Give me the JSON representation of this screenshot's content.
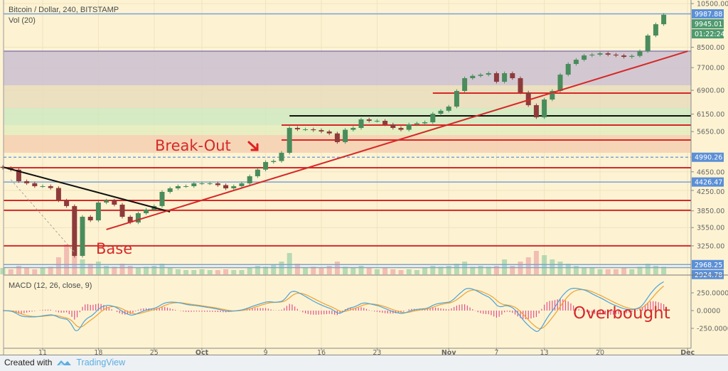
{
  "header": {
    "symbol_title": "Bitcoin / Dollar, 240, BITSTAMP",
    "volume_title": "Vol (20)"
  },
  "macd_title": "MACD (12, 26, close, 9)",
  "footer": {
    "created_with": "Created with",
    "brand": "TradingView"
  },
  "colors": {
    "background": "#fdf3d3",
    "up": "#4a8c5c",
    "down": "#8e3b3b",
    "level_red": "#d62828",
    "level_blue": "#7aa3d6",
    "trend_black": "#111111",
    "macd": "#4aa3d8",
    "signal": "#f0a030",
    "histogram": "#e0508a",
    "label_blue": "#5b8fd6",
    "label_green": "#4f9a6e"
  },
  "annotations": [
    {
      "text": "Break-Out",
      "date": "Sep 25",
      "price": 5240,
      "size": "large"
    },
    {
      "text": "Base",
      "date": "Sep 18",
      "price": 3160,
      "size": "large"
    },
    {
      "text": "Overbought",
      "date": "Nov 17",
      "macd": -200,
      "size": "large"
    }
  ],
  "chart_data": {
    "type": "candlestick",
    "title": "Bitcoin / Dollar, 240, BITSTAMP",
    "y_scale": "log",
    "ylim": [
      2850,
      10500
    ],
    "price_ticks": [
      10500,
      8500,
      7700,
      6900,
      6150,
      5650,
      4650,
      4250,
      3850,
      3550,
      3250
    ],
    "price_badges": [
      {
        "text": "9987.88",
        "value": 9987.88,
        "color": "blue"
      },
      {
        "text": "9945.01",
        "value": 9945.01,
        "color": "green"
      },
      {
        "text": "01:22:24",
        "value": 9350,
        "color": "green"
      },
      {
        "text": "4990.26",
        "value": 4990.26,
        "color": "blue"
      },
      {
        "text": "4426.47",
        "value": 4426.47,
        "color": "blue"
      },
      {
        "text": "2968.25",
        "value": 2968.25,
        "color": "blue"
      },
      {
        "text": "2924.78",
        "value": 2924.78,
        "color": "blue"
      }
    ],
    "x_ticks": [
      {
        "label": "11",
        "date": "Sep 11"
      },
      {
        "label": "18",
        "date": "Sep 18"
      },
      {
        "label": "25",
        "date": "Sep 25"
      },
      {
        "label": "Oct",
        "date": "Oct 01",
        "bold": true
      },
      {
        "label": "9",
        "date": "Oct 09"
      },
      {
        "label": "16",
        "date": "Oct 16"
      },
      {
        "label": "23",
        "date": "Oct 23"
      },
      {
        "label": "Nov",
        "date": "Nov 01",
        "bold": true
      },
      {
        "label": "7",
        "date": "Nov 07"
      },
      {
        "label": "13",
        "date": "Nov 13"
      },
      {
        "label": "20",
        "date": "Nov 20"
      },
      {
        "label": "Dec",
        "date": "Dec 01",
        "bold": true
      }
    ],
    "dates": [
      "Sep 06",
      "Sep 07",
      "Sep 08",
      "Sep 09",
      "Sep 10",
      "Sep 11",
      "Sep 12",
      "Sep 13",
      "Sep 14",
      "Sep 15",
      "Sep 16",
      "Sep 17",
      "Sep 18",
      "Sep 19",
      "Sep 20",
      "Sep 21",
      "Sep 22",
      "Sep 23",
      "Sep 24",
      "Sep 25",
      "Sep 26",
      "Sep 27",
      "Sep 28",
      "Sep 29",
      "Sep 30",
      "Oct 01",
      "Oct 02",
      "Oct 03",
      "Oct 04",
      "Oct 05",
      "Oct 06",
      "Oct 07",
      "Oct 08",
      "Oct 09",
      "Oct 10",
      "Oct 11",
      "Oct 12",
      "Oct 13",
      "Oct 14",
      "Oct 15",
      "Oct 16",
      "Oct 17",
      "Oct 18",
      "Oct 19",
      "Oct 20",
      "Oct 21",
      "Oct 22",
      "Oct 23",
      "Oct 24",
      "Oct 25",
      "Oct 26",
      "Oct 27",
      "Oct 28",
      "Oct 29",
      "Oct 30",
      "Oct 31",
      "Nov 01",
      "Nov 02",
      "Nov 03",
      "Nov 04",
      "Nov 05",
      "Nov 06",
      "Nov 07",
      "Nov 08",
      "Nov 09",
      "Nov 10",
      "Nov 11",
      "Nov 12",
      "Nov 13",
      "Nov 14",
      "Nov 15",
      "Nov 16",
      "Nov 17",
      "Nov 18",
      "Nov 19",
      "Nov 20",
      "Nov 21",
      "Nov 22",
      "Nov 23",
      "Nov 24",
      "Nov 25",
      "Nov 26",
      "Nov 27",
      "Nov 28"
    ],
    "close": [
      4740,
      4699,
      4444,
      4400,
      4338,
      4338,
      4300,
      4049,
      3940,
      3096,
      3741,
      3677,
      4008,
      4049,
      3967,
      3741,
      3639,
      3806,
      3872,
      3940,
      4220,
      4293,
      4338,
      4338,
      4398,
      4398,
      4398,
      4360,
      4293,
      4338,
      4398,
      4552,
      4700,
      4876,
      4900,
      5099,
      5751,
      5712,
      5712,
      5690,
      5653,
      5600,
      5369,
      5700,
      5751,
      5993,
      5952,
      5952,
      5850,
      5751,
      5700,
      5851,
      5880,
      5911,
      6160,
      6250,
      6377,
      6878,
      7317,
      7400,
      7443,
      7495,
      7191,
      7495,
      7317,
      6830,
      6421,
      6055,
      6599,
      6878,
      7443,
      7838,
      8000,
      8168,
      8200,
      8253,
      8200,
      8168,
      8112,
      8150,
      8338,
      8995,
      9500,
      9945
    ],
    "volume_relative": [
      15,
      12,
      20,
      15,
      12,
      15,
      18,
      40,
      70,
      60,
      35,
      25,
      30,
      20,
      18,
      25,
      20,
      15,
      18,
      20,
      25,
      15,
      12,
      10,
      10,
      12,
      10,
      10,
      12,
      10,
      10,
      15,
      20,
      18,
      22,
      30,
      50,
      25,
      15,
      18,
      15,
      20,
      30,
      18,
      15,
      20,
      15,
      12,
      15,
      12,
      10,
      12,
      10,
      15,
      20,
      18,
      20,
      25,
      30,
      18,
      20,
      18,
      20,
      35,
      20,
      30,
      40,
      55,
      45,
      35,
      30,
      25,
      20,
      15,
      15,
      12,
      12,
      12,
      15,
      12,
      18,
      25,
      20,
      18
    ],
    "zones": [
      {
        "from": 7070,
        "to": 8338,
        "color": "#cbbfd0"
      },
      {
        "from": 6333,
        "to": 7070,
        "color": "#e8dcbc"
      },
      {
        "from": 5831,
        "to": 6333,
        "color": "#cfe8c0"
      },
      {
        "from": 5557,
        "to": 5831,
        "color": "#e3ecbd"
      },
      {
        "from": 5099,
        "to": 5557,
        "color": "#f5cfb0"
      }
    ],
    "levels": [
      {
        "price": 9987.88,
        "color": "blue"
      },
      {
        "price": 8338,
        "color": "purple"
      },
      {
        "price": 6807,
        "color": "red",
        "from": "Oct 30"
      },
      {
        "price": 6097,
        "color": "black",
        "from": "Oct 12"
      },
      {
        "price": 5831,
        "color": "red",
        "from": "Oct 11"
      },
      {
        "price": 5424,
        "color": "red",
        "from": "Oct 11"
      },
      {
        "price": 4990.26,
        "color": "blue",
        "dashed": true
      },
      {
        "price": 4744,
        "color": "red"
      },
      {
        "price": 4426.47,
        "color": "blue"
      },
      {
        "price": 4049,
        "color": "red"
      },
      {
        "price": 3860,
        "color": "red"
      },
      {
        "price": 3250,
        "color": "red"
      },
      {
        "price": 2968.25,
        "color": "blue"
      },
      {
        "price": 2924.78,
        "color": "blue"
      }
    ],
    "trendlines": [
      {
        "from": [
          "Sep 06",
          4760
        ],
        "to": [
          "Sep 27",
          3832
        ],
        "color": "black"
      },
      {
        "from": [
          "Sep 19",
          3517
        ],
        "to": [
          "Dec 01",
          8338
        ],
        "color": "red"
      },
      {
        "from": [
          "Sep 07",
          4480
        ],
        "to": [
          "Sep 15",
          3150
        ],
        "color": "gray",
        "dashed": true
      }
    ],
    "macd": {
      "fast": 12,
      "slow": 26,
      "signal": 9,
      "source": "close",
      "ticks": [
        {
          "label": "250.0000",
          "value": 250
        },
        {
          "label": "0.0000",
          "value": 0
        },
        {
          "label": "-250.0000",
          "value": -250
        }
      ]
    }
  }
}
